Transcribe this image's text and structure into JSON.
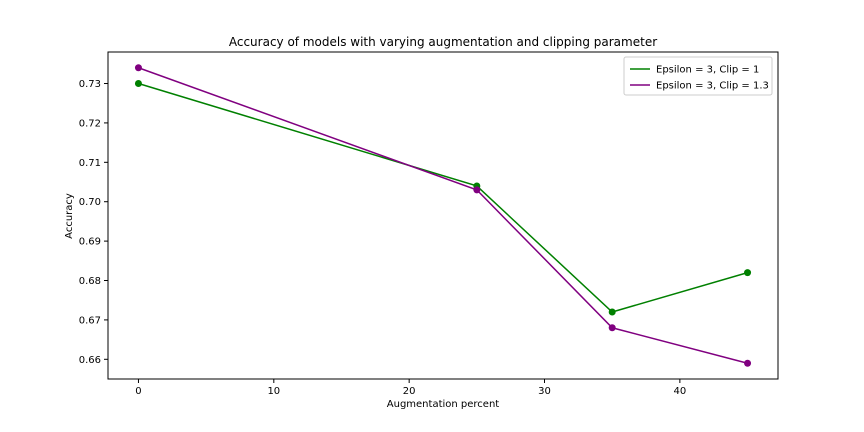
{
  "chart_data": {
    "type": "line",
    "title": "Accuracy of models with varying augmentation and clipping parameter",
    "xlabel": "Augmentation percent",
    "ylabel": "Accuracy",
    "xlim": [
      -2.25,
      47.25
    ],
    "ylim": [
      0.655,
      0.738
    ],
    "xticks": [
      0,
      10,
      20,
      30,
      40
    ],
    "yticks": [
      0.66,
      0.67,
      0.68,
      0.69,
      0.7,
      0.71,
      0.72,
      0.73
    ],
    "xtick_labels": [
      "0",
      "10",
      "20",
      "30",
      "40"
    ],
    "ytick_labels": [
      "0.66",
      "0.67",
      "0.68",
      "0.69",
      "0.70",
      "0.71",
      "0.72",
      "0.73"
    ],
    "grid": false,
    "legend_position": "top-right",
    "x": [
      0,
      25,
      35,
      45
    ],
    "series": [
      {
        "name": "Epsilon = 3, Clip = 1",
        "color": "#008000",
        "values": [
          0.73,
          0.704,
          0.672,
          0.682
        ]
      },
      {
        "name": "Epsilon = 3, Clip = 1.3",
        "color": "#800080",
        "values": [
          0.734,
          0.703,
          0.668,
          0.659
        ]
      }
    ]
  }
}
